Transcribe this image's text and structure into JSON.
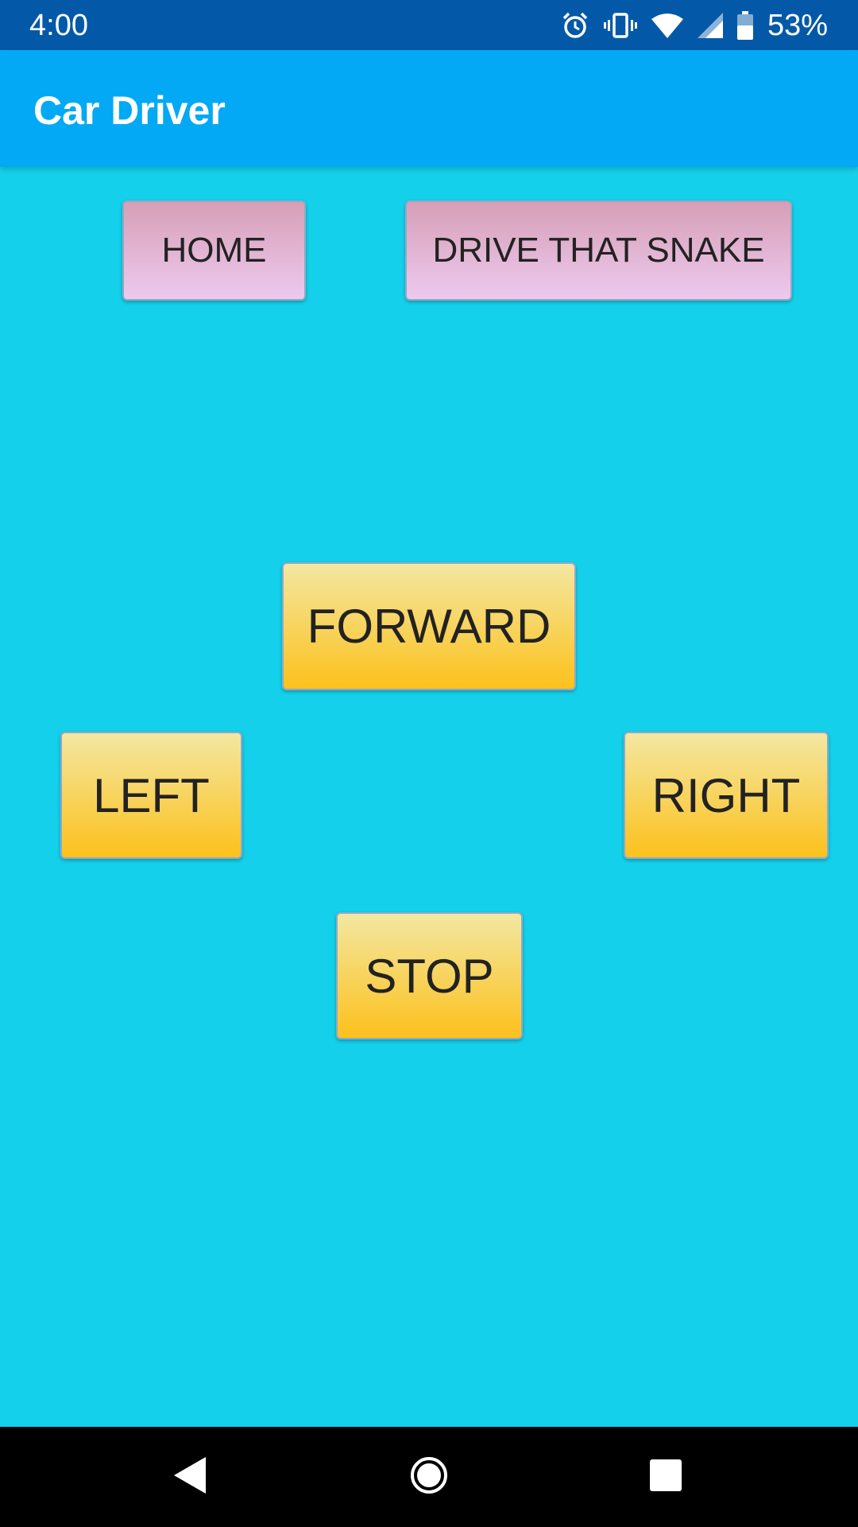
{
  "status_bar": {
    "time": "4:00",
    "battery": "53%",
    "icons": [
      "alarm-icon",
      "vibrate-icon",
      "wifi-icon",
      "signal-icon",
      "battery-icon"
    ]
  },
  "app_bar": {
    "title": "Car Driver"
  },
  "buttons": {
    "home": "HOME",
    "drive_that_snake": "DRIVE THAT SNAKE",
    "forward": "FORWARD",
    "left": "LEFT",
    "right": "RIGHT",
    "stop": "STOP"
  },
  "navigation": {
    "icons": [
      "back-icon",
      "home-icon",
      "recents-icon"
    ]
  },
  "colors": {
    "status_bar": "#0359A8",
    "app_bar": "#03A9F4",
    "background": "#14D0EA",
    "pink_button_top": "#D69FB6",
    "pink_button_bottom": "#EDC9EE",
    "yellow_button_top": "#F3E7A2",
    "yellow_button_bottom": "#FCC11C"
  }
}
